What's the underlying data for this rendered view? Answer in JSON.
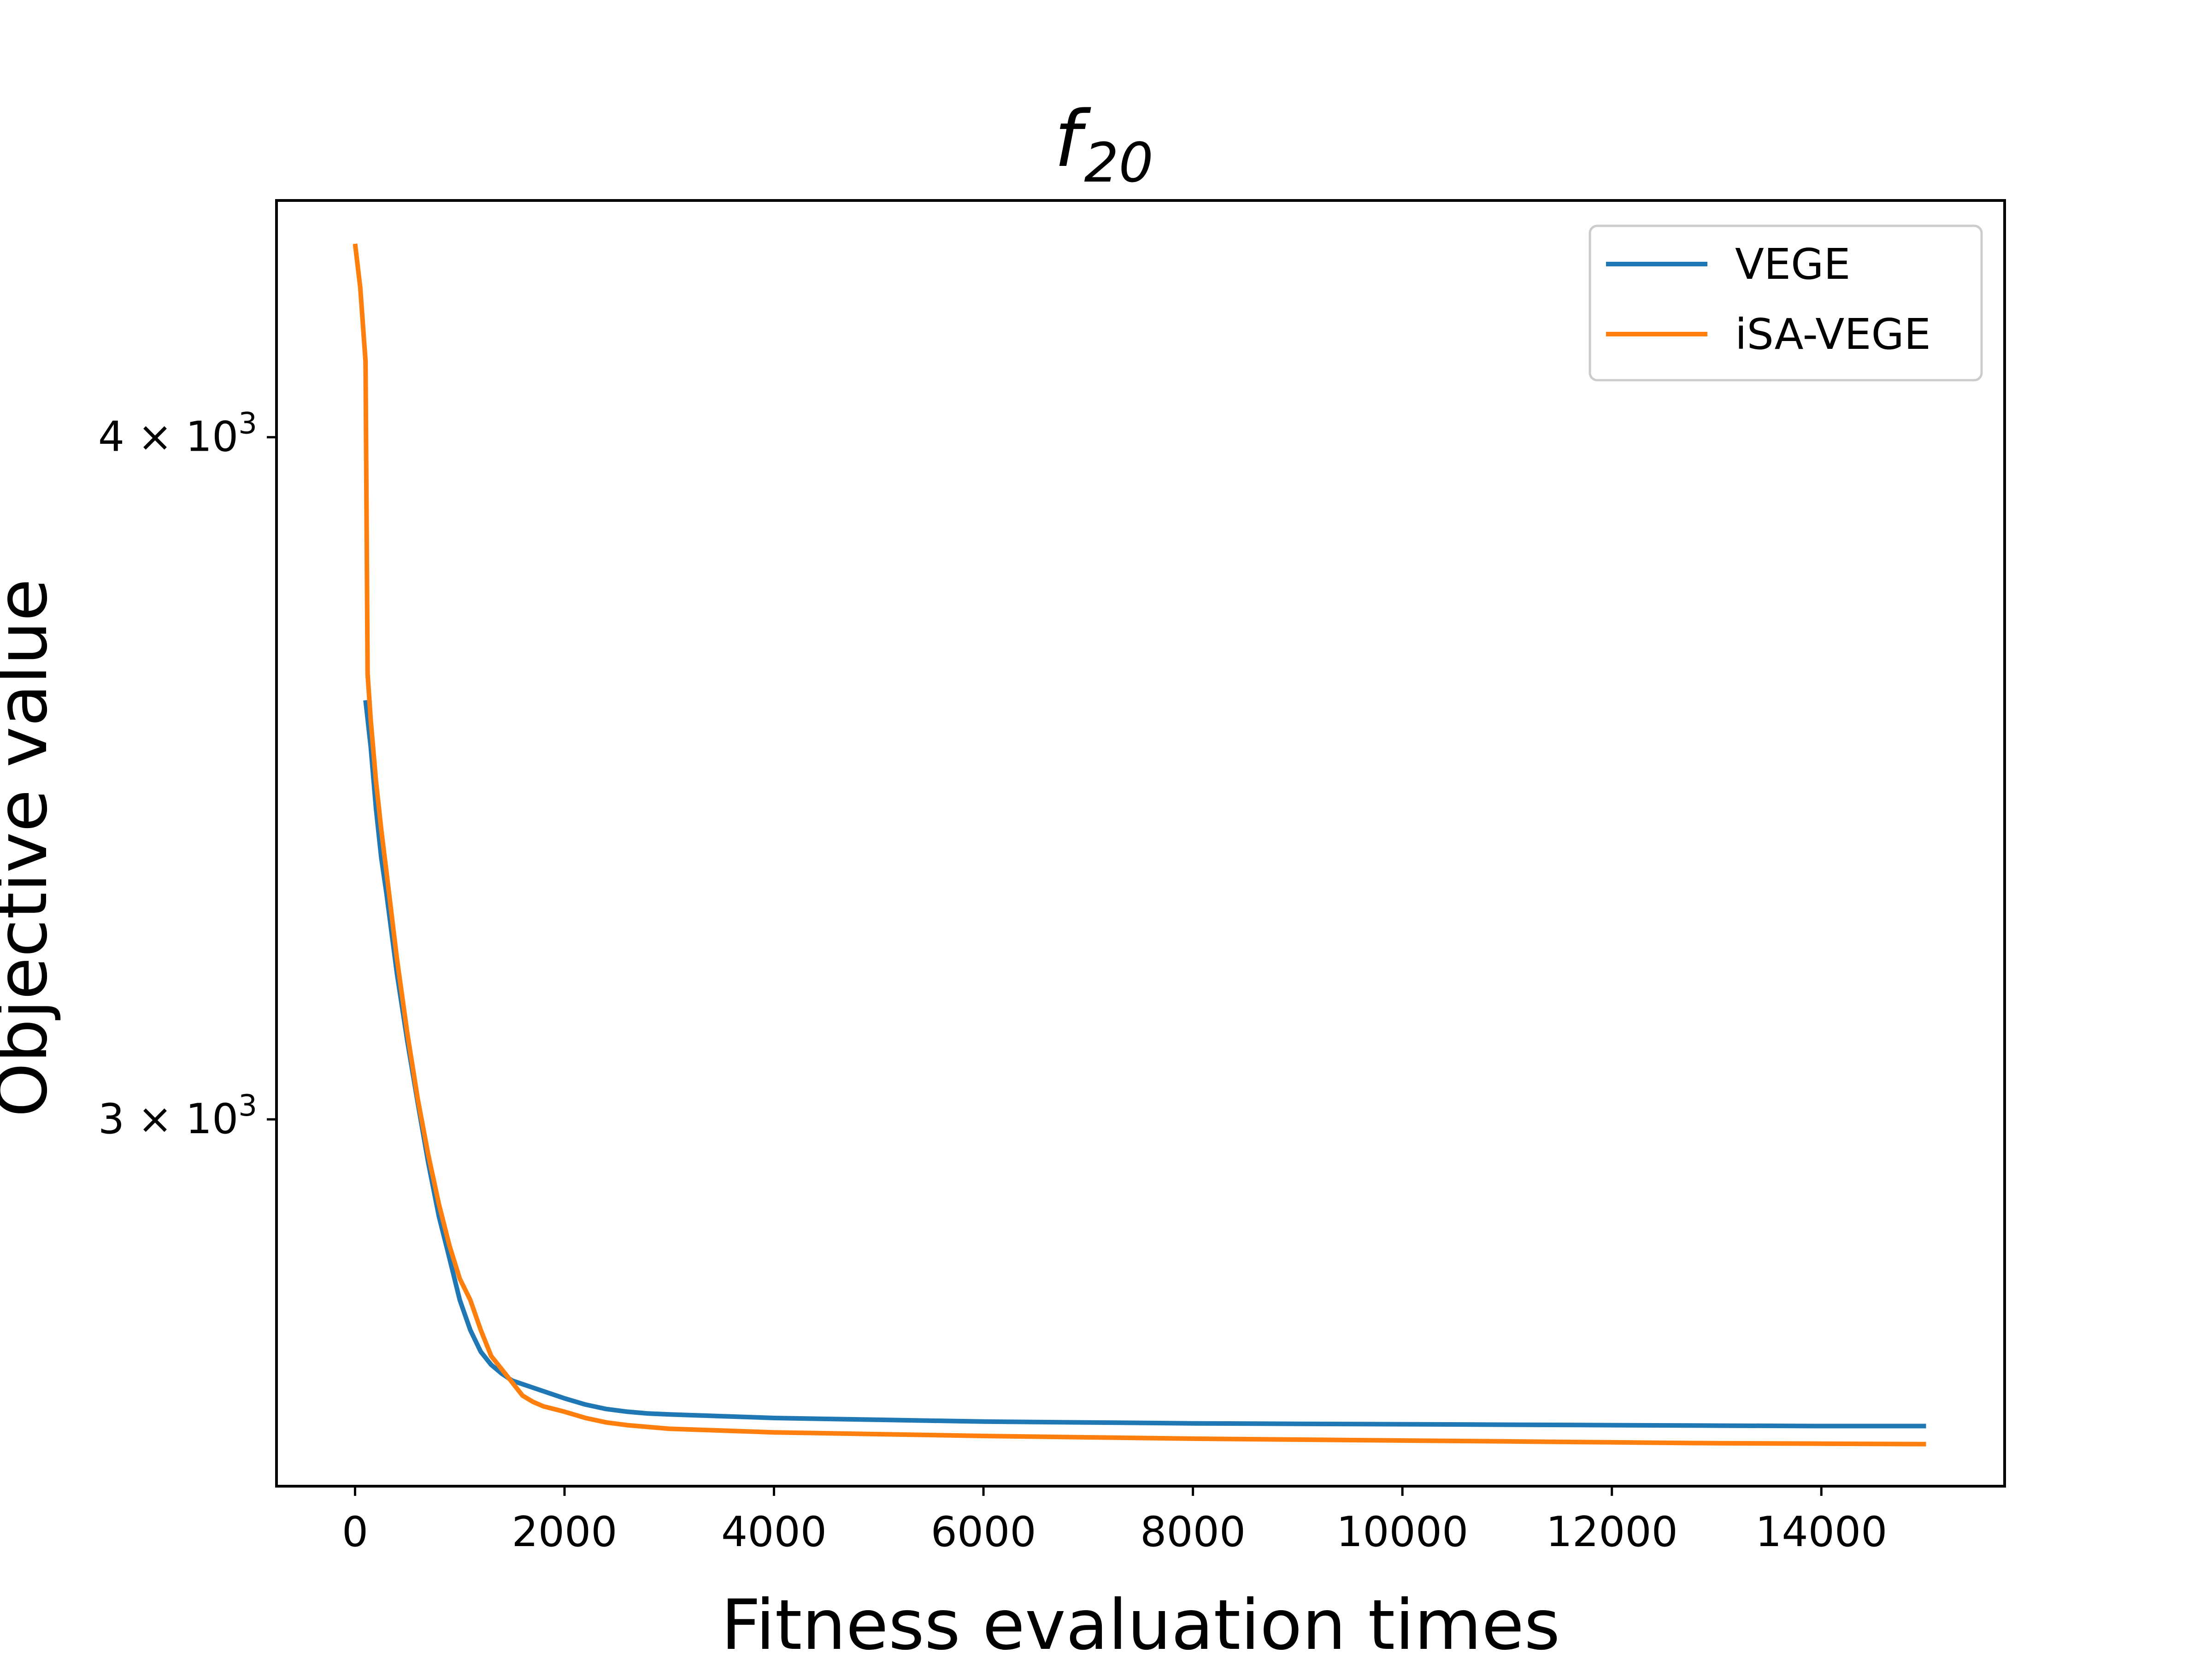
{
  "chart_data": {
    "type": "line",
    "title": {
      "base": "f",
      "sub": "20"
    },
    "xlabel": "Fitness evaluation times",
    "ylabel": "Objective value",
    "yscale": "log",
    "xlim": [
      -750,
      15750
    ],
    "ylim": [
      2570,
      4420
    ],
    "xticks": [
      {
        "value": 0,
        "label": "0"
      },
      {
        "value": 2000,
        "label": "2000"
      },
      {
        "value": 4000,
        "label": "4000"
      },
      {
        "value": 6000,
        "label": "6000"
      },
      {
        "value": 8000,
        "label": "8000"
      },
      {
        "value": 10000,
        "label": "10000"
      },
      {
        "value": 12000,
        "label": "12000"
      },
      {
        "value": 14000,
        "label": "14000"
      }
    ],
    "yticks": [
      {
        "value": 4000,
        "mantissa": "4 × 10",
        "exp": "3"
      },
      {
        "value": 3000,
        "mantissa": "3 × 10",
        "exp": "3"
      }
    ],
    "grid": false,
    "legend_position": "top-right",
    "series": [
      {
        "name": "VEGE",
        "color": "#1f77b4",
        "x": [
          100,
          150,
          200,
          250,
          300,
          400,
          500,
          600,
          700,
          800,
          900,
          1000,
          1100,
          1200,
          1300,
          1400,
          1500,
          1600,
          1800,
          2000,
          2200,
          2400,
          2600,
          2800,
          3000,
          3500,
          4000,
          5000,
          6000,
          7000,
          8000,
          9000,
          10000,
          11000,
          12000,
          13000,
          14000,
          15000
        ],
        "y": [
          3580,
          3510,
          3420,
          3350,
          3300,
          3190,
          3100,
          3020,
          2945,
          2880,
          2830,
          2780,
          2745,
          2720,
          2705,
          2695,
          2687,
          2683,
          2675,
          2667,
          2660,
          2655,
          2652,
          2650,
          2649,
          2647,
          2645,
          2643,
          2641,
          2640,
          2639,
          2638.5,
          2638,
          2637.5,
          2637,
          2636.5,
          2636,
          2636
        ]
      },
      {
        "name": "iSA-VEGE",
        "color": "#ff7f0e",
        "x": [
          0,
          50,
          100,
          120,
          150,
          200,
          250,
          300,
          400,
          500,
          600,
          700,
          800,
          900,
          1000,
          1100,
          1200,
          1300,
          1400,
          1500,
          1600,
          1700,
          1800,
          2000,
          2200,
          2400,
          2600,
          2800,
          3000,
          3500,
          4000,
          5000,
          6000,
          7000,
          8000,
          9000,
          10000,
          11000,
          12000,
          13000,
          14000,
          15000
        ],
        "y": [
          4340,
          4260,
          4130,
          3620,
          3550,
          3460,
          3390,
          3330,
          3210,
          3110,
          3025,
          2955,
          2895,
          2845,
          2805,
          2780,
          2745,
          2715,
          2700,
          2685,
          2670,
          2663,
          2658,
          2652,
          2645,
          2640,
          2637,
          2635,
          2633,
          2631,
          2629,
          2627,
          2625,
          2623.5,
          2622,
          2621,
          2620,
          2619,
          2618,
          2617,
          2616.5,
          2616
        ]
      }
    ]
  }
}
